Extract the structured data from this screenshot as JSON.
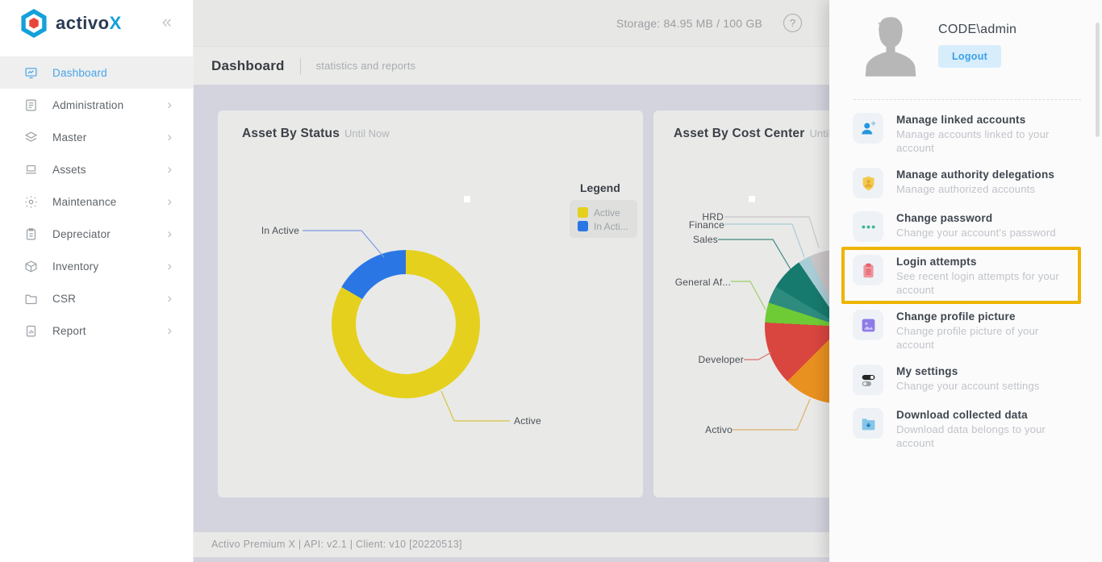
{
  "brand": {
    "logo_text": "activo",
    "logo_accent": "X",
    "collapse_glyph": "«"
  },
  "sidebar": {
    "items": [
      {
        "label": "Dashboard",
        "icon": "dashboard",
        "active": true
      },
      {
        "label": "Administration",
        "icon": "administration"
      },
      {
        "label": "Master",
        "icon": "master"
      },
      {
        "label": "Assets",
        "icon": "assets"
      },
      {
        "label": "Maintenance",
        "icon": "maintenance"
      },
      {
        "label": "Depreciator",
        "icon": "depreciator"
      },
      {
        "label": "Inventory",
        "icon": "inventory"
      },
      {
        "label": "CSR",
        "icon": "csr"
      },
      {
        "label": "Report",
        "icon": "report"
      }
    ]
  },
  "topbar": {
    "storage": "Storage: 84.95 MB / 100 GB",
    "help_glyph": "?"
  },
  "page_header": {
    "title": "Dashboard",
    "subtitle": "statistics and reports"
  },
  "chart_data": [
    {
      "type": "donut",
      "title": "Asset By Status",
      "subtitle": "Until Now",
      "legend_title": "Legend",
      "legend_items": [
        {
          "label": "Active",
          "color": "#e5d01d"
        },
        {
          "label": "In Acti...",
          "color": "#2b76e5"
        }
      ],
      "segments": [
        {
          "label": "Active",
          "color": "#e5d01d",
          "start_deg": 0,
          "end_deg": 300,
          "approx_pct": 83
        },
        {
          "label": "In Active",
          "color": "#2b76e5",
          "start_deg": 300,
          "end_deg": 360,
          "approx_pct": 17
        }
      ]
    },
    {
      "type": "pie",
      "title": "Asset By Cost Center",
      "subtitle": "Until Now",
      "note": "right portion hidden behind user panel",
      "segments": [
        {
          "label": "Activo",
          "color": "#e89020",
          "start_deg": 150,
          "end_deg": 225
        },
        {
          "label": "Developer",
          "color": "#d9453f",
          "start_deg": 225,
          "end_deg": 273
        },
        {
          "label": "General Af...",
          "color": "#6ecb35",
          "start_deg": 273,
          "end_deg": 288
        },
        {
          "label": "",
          "color": "#2e8c7f",
          "start_deg": 288,
          "end_deg": 301
        },
        {
          "label": "Sales",
          "color": "#177a6e",
          "start_deg": 301,
          "end_deg": 326
        },
        {
          "label": "Finance",
          "color": "#a9cdd7",
          "start_deg": 326,
          "end_deg": 335
        },
        {
          "label": "HRD",
          "color": "#c9c5c6",
          "start_deg": 335,
          "end_deg": 360
        }
      ]
    }
  ],
  "footer": {
    "text": "Activo Premium X | API: v2.1 | Client: v10 [20220513]"
  },
  "user_panel": {
    "username": "CODE\\admin",
    "logout_label": "Logout",
    "highlight_color": "#eeb400",
    "menu": [
      {
        "title": "Manage linked accounts",
        "description": "Manage accounts linked to your account",
        "icon": "person-add",
        "highlighted": false
      },
      {
        "title": "Manage authority delegations",
        "description": "Manage authorized accounts",
        "icon": "shield-person",
        "highlighted": false
      },
      {
        "title": "Change password",
        "description": "Change your account's password",
        "icon": "password-dots",
        "highlighted": false
      },
      {
        "title": "Login attempts",
        "description": "See recent login attempts for your account",
        "icon": "clipboard",
        "highlighted": true
      },
      {
        "title": "Change profile picture",
        "description": "Change profile picture of your account",
        "icon": "image",
        "highlighted": false
      },
      {
        "title": "My settings",
        "description": "Change your account settings",
        "icon": "toggles",
        "highlighted": false
      },
      {
        "title": "Download collected data",
        "description": "Download data belongs to your account",
        "icon": "folder-download",
        "highlighted": false
      }
    ]
  }
}
